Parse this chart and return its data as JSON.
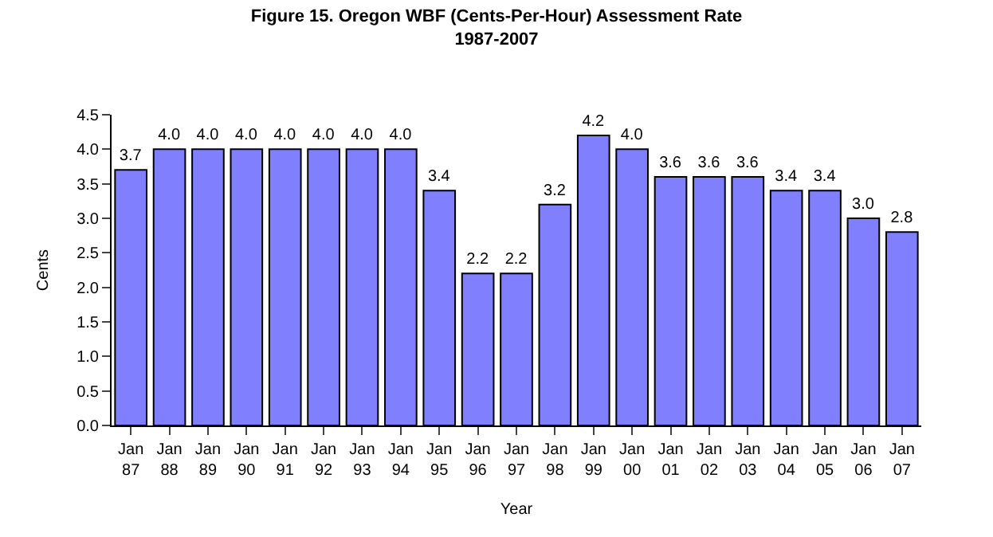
{
  "chart_data": {
    "type": "bar",
    "title": "Figure 15. Oregon WBF (Cents-Per-Hour) Assessment Rate\n1987-2007",
    "xlabel": "Year",
    "ylabel": "Cents",
    "categories": [
      "Jan 87",
      "Jan 88",
      "Jan 89",
      "Jan 90",
      "Jan 91",
      "Jan 92",
      "Jan 93",
      "Jan 94",
      "Jan 95",
      "Jan 96",
      "Jan 97",
      "Jan 98",
      "Jan 99",
      "Jan 00",
      "Jan 01",
      "Jan 02",
      "Jan 03",
      "Jan 04",
      "Jan 05",
      "Jan 06",
      "Jan 07"
    ],
    "values": [
      3.7,
      4.0,
      4.0,
      4.0,
      4.0,
      4.0,
      4.0,
      4.0,
      3.4,
      2.2,
      2.2,
      3.2,
      4.2,
      4.0,
      3.6,
      3.6,
      3.6,
      3.4,
      3.4,
      3.0,
      2.8
    ],
    "value_labels": [
      "3.7",
      "4.0",
      "4.0",
      "4.0",
      "4.0",
      "4.0",
      "4.0",
      "4.0",
      "3.4",
      "2.2",
      "2.2",
      "3.2",
      "4.2",
      "4.0",
      "3.6",
      "3.6",
      "3.6",
      "3.4",
      "3.4",
      "3.0",
      "2.8"
    ],
    "color": "#8080ff",
    "ylim": [
      0,
      4.5
    ],
    "yticks": [
      {
        "value": 0,
        "label": "0.0"
      },
      {
        "value": 0.5,
        "label": "0.5"
      },
      {
        "value": 1,
        "label": "1.0"
      },
      {
        "value": 1.5,
        "label": "1.5"
      },
      {
        "value": 2,
        "label": "2.0"
      },
      {
        "value": 2.5,
        "label": "2.5"
      },
      {
        "value": 3,
        "label": "3.0"
      },
      {
        "value": 3.5,
        "label": "3.5"
      },
      {
        "value": 4,
        "label": "4.0"
      },
      {
        "value": 4.5,
        "label": "4.5"
      }
    ]
  }
}
